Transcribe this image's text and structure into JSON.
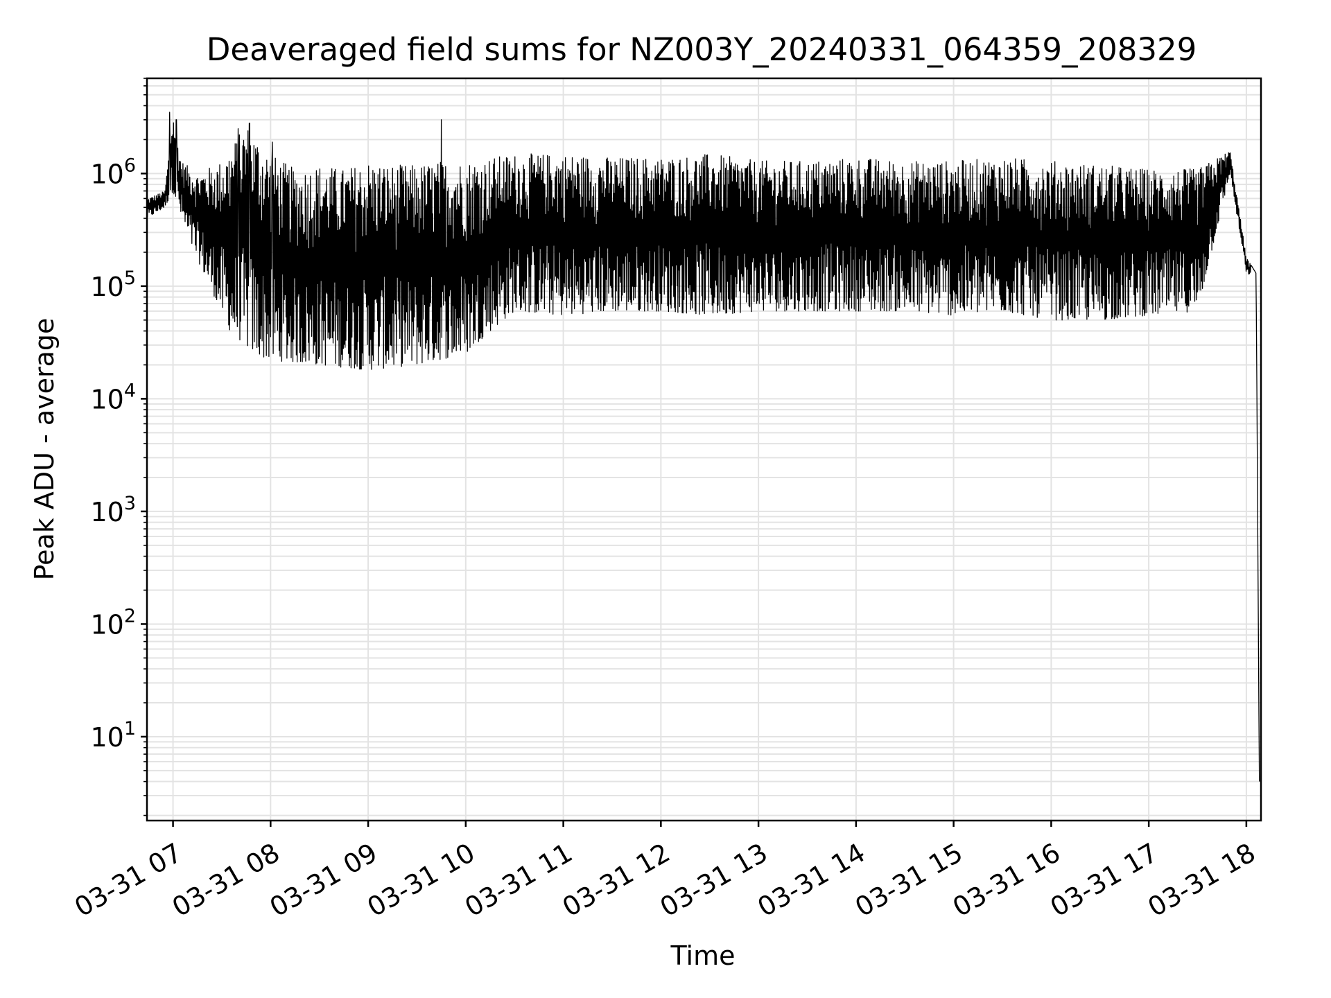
{
  "chart_data": {
    "type": "line",
    "title": "Deaveraged field sums for NZ003Y_20240331_064359_208329",
    "xlabel": "Time",
    "ylabel": "Peak ADU - average",
    "yscale": "log",
    "ylim": [
      1.8,
      7000000
    ],
    "xlim": [
      "2024-03-31 06:43:59",
      "2024-03-31 18:09:00"
    ],
    "grid": "major and minor",
    "line_color": "#000000",
    "x_ticks": [
      {
        "label": "03-31 07",
        "t": "2024-03-31 07:00"
      },
      {
        "label": "03-31 08",
        "t": "2024-03-31 08:00"
      },
      {
        "label": "03-31 09",
        "t": "2024-03-31 09:00"
      },
      {
        "label": "03-31 10",
        "t": "2024-03-31 10:00"
      },
      {
        "label": "03-31 11",
        "t": "2024-03-31 11:00"
      },
      {
        "label": "03-31 12",
        "t": "2024-03-31 12:00"
      },
      {
        "label": "03-31 13",
        "t": "2024-03-31 13:00"
      },
      {
        "label": "03-31 14",
        "t": "2024-03-31 14:00"
      },
      {
        "label": "03-31 15",
        "t": "2024-03-31 15:00"
      },
      {
        "label": "03-31 16",
        "t": "2024-03-31 16:00"
      },
      {
        "label": "03-31 17",
        "t": "2024-03-31 17:00"
      },
      {
        "label": "03-31 18",
        "t": "2024-03-31 18:00"
      }
    ],
    "y_ticks": [
      {
        "base": "10",
        "exp": "1",
        "value": 10
      },
      {
        "base": "10",
        "exp": "2",
        "value": 100
      },
      {
        "base": "10",
        "exp": "3",
        "value": 1000
      },
      {
        "base": "10",
        "exp": "4",
        "value": 10000
      },
      {
        "base": "10",
        "exp": "5",
        "value": 100000
      },
      {
        "base": "10",
        "exp": "6",
        "value": 1000000
      }
    ],
    "series": [
      {
        "upper_envelope": [
          [
            "2024-03-31 06:44",
            600000
          ],
          [
            "2024-03-31 06:55",
            700000
          ],
          [
            "2024-03-31 07:00",
            3500000
          ],
          [
            "2024-03-31 07:05",
            1300000
          ],
          [
            "2024-03-31 07:15",
            1000000
          ],
          [
            "2024-03-31 07:30",
            1300000
          ],
          [
            "2024-03-31 07:45",
            2800000
          ],
          [
            "2024-03-31 08:00",
            1500000
          ],
          [
            "2024-03-31 08:15",
            1100000
          ],
          [
            "2024-03-31 08:30",
            1200000
          ],
          [
            "2024-03-31 08:45",
            1100000
          ],
          [
            "2024-03-31 09:00",
            1300000
          ],
          [
            "2024-03-31 09:15",
            1200000
          ],
          [
            "2024-03-31 09:30",
            1200000
          ],
          [
            "2024-03-31 09:45",
            1300000
          ],
          [
            "2024-03-31 10:00",
            1300000
          ],
          [
            "2024-03-31 10:30",
            1500000
          ],
          [
            "2024-03-31 11:00",
            1500000
          ],
          [
            "2024-03-31 11:30",
            1400000
          ],
          [
            "2024-03-31 12:00",
            1400000
          ],
          [
            "2024-03-31 12:30",
            1500000
          ],
          [
            "2024-03-31 13:00",
            1300000
          ],
          [
            "2024-03-31 13:30",
            1300000
          ],
          [
            "2024-03-31 14:00",
            1400000
          ],
          [
            "2024-03-31 14:30",
            1300000
          ],
          [
            "2024-03-31 15:00",
            1300000
          ],
          [
            "2024-03-31 15:30",
            1400000
          ],
          [
            "2024-03-31 16:00",
            1300000
          ],
          [
            "2024-03-31 16:30",
            1200000
          ],
          [
            "2024-03-31 17:00",
            1100000
          ],
          [
            "2024-03-31 17:30",
            1100000
          ],
          [
            "2024-03-31 17:50",
            1600000
          ],
          [
            "2024-03-31 18:00",
            180000
          ],
          [
            "2024-03-31 18:06",
            130000
          ],
          [
            "2024-03-31 18:08",
            4
          ]
        ],
        "lower_envelope": [
          [
            "2024-03-31 06:44",
            400000
          ],
          [
            "2024-03-31 06:55",
            500000
          ],
          [
            "2024-03-31 07:00",
            700000
          ],
          [
            "2024-03-31 07:10",
            250000
          ],
          [
            "2024-03-31 07:20",
            120000
          ],
          [
            "2024-03-31 07:35",
            40000
          ],
          [
            "2024-03-31 07:50",
            25000
          ],
          [
            "2024-03-31 08:00",
            22000
          ],
          [
            "2024-03-31 08:30",
            20000
          ],
          [
            "2024-03-31 09:00",
            18000
          ],
          [
            "2024-03-31 09:30",
            20000
          ],
          [
            "2024-03-31 10:00",
            25000
          ],
          [
            "2024-03-31 10:15",
            40000
          ],
          [
            "2024-03-31 10:30",
            60000
          ],
          [
            "2024-03-31 11:00",
            55000
          ],
          [
            "2024-03-31 11:30",
            60000
          ],
          [
            "2024-03-31 12:00",
            60000
          ],
          [
            "2024-03-31 12:30",
            55000
          ],
          [
            "2024-03-31 13:00",
            60000
          ],
          [
            "2024-03-31 13:30",
            60000
          ],
          [
            "2024-03-31 14:00",
            60000
          ],
          [
            "2024-03-31 14:30",
            60000
          ],
          [
            "2024-03-31 15:00",
            55000
          ],
          [
            "2024-03-31 15:30",
            60000
          ],
          [
            "2024-03-31 16:00",
            50000
          ],
          [
            "2024-03-31 16:30",
            50000
          ],
          [
            "2024-03-31 17:00",
            55000
          ],
          [
            "2024-03-31 17:30",
            60000
          ],
          [
            "2024-03-31 17:50",
            1000000
          ],
          [
            "2024-03-31 18:00",
            130000
          ],
          [
            "2024-03-31 18:06",
            100000
          ],
          [
            "2024-03-31 18:08",
            4
          ]
        ],
        "spikes": [
          [
            "2024-03-31 06:58",
            3500000
          ],
          [
            "2024-03-31 07:02",
            3000000
          ],
          [
            "2024-03-31 07:40",
            2500000
          ],
          [
            "2024-03-31 07:47",
            2800000
          ],
          [
            "2024-03-31 08:01",
            1900000
          ],
          [
            "2024-03-31 09:45",
            3000000
          ]
        ]
      }
    ]
  }
}
